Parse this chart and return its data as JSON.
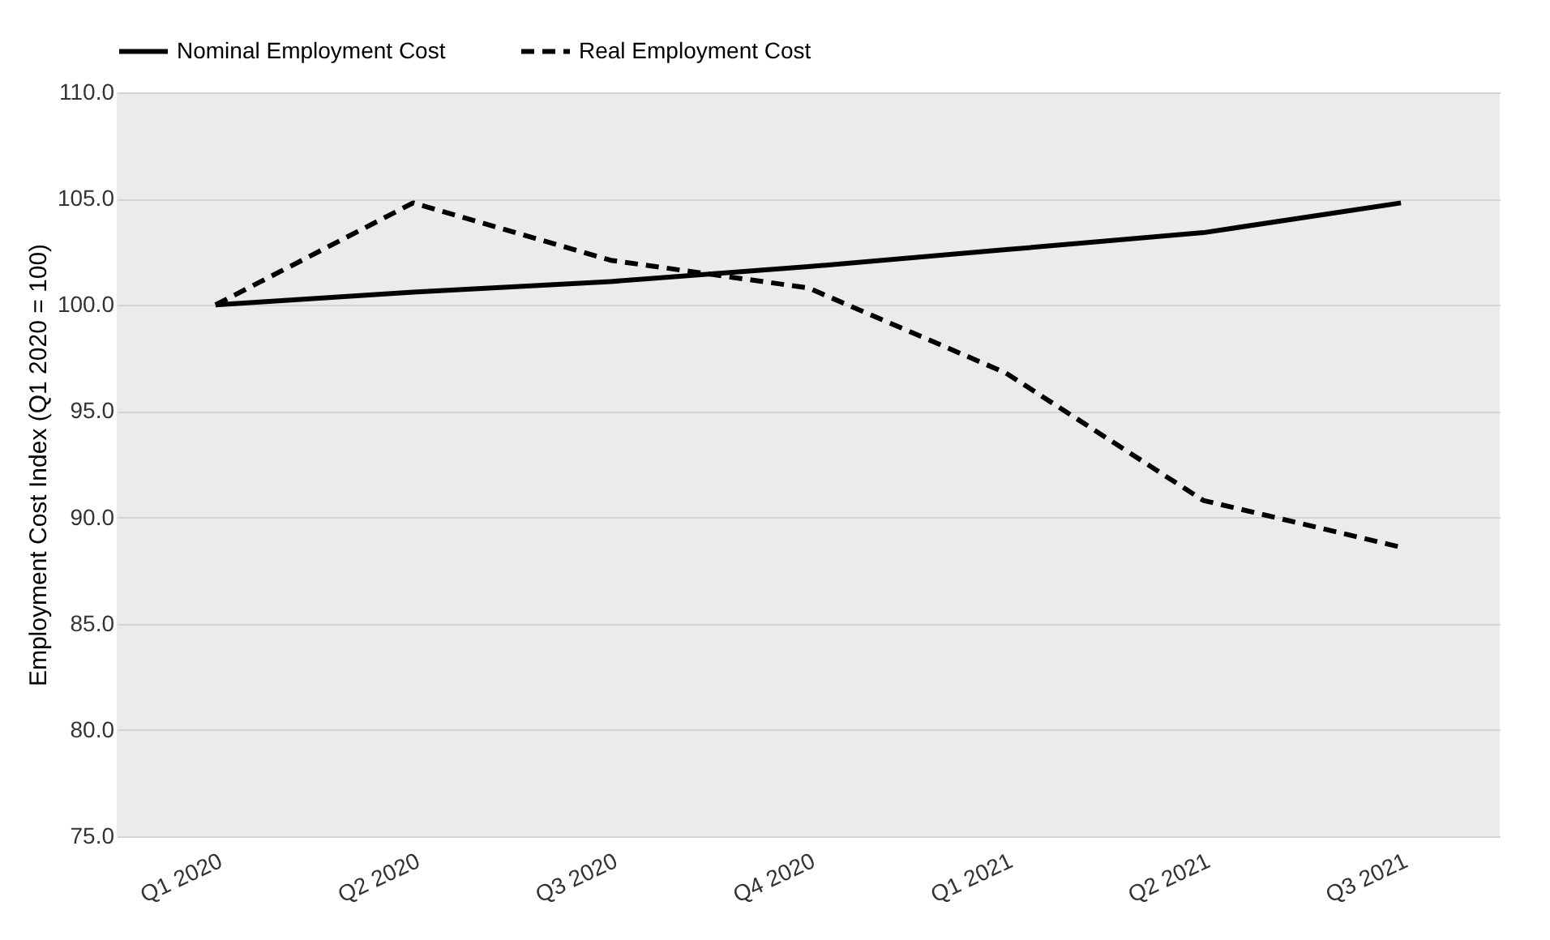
{
  "chart_data": {
    "type": "line",
    "ylabel": "Employment Cost Index (Q1 2020 = 100)",
    "categories": [
      "Q1 2020",
      "Q2 2020",
      "Q3 2020",
      "Q4 2020",
      "Q1 2021",
      "Q2 2021",
      "Q3 2021"
    ],
    "series": [
      {
        "name": "Nominal Employment Cost",
        "color": "#000000",
        "line_style": "solid",
        "values": [
          100.0,
          100.6,
          101.1,
          101.8,
          102.6,
          103.4,
          104.8
        ]
      },
      {
        "name": "Real Employment Cost",
        "color": "#000000",
        "line_style": "dashed",
        "values": [
          100.0,
          104.8,
          102.1,
          100.8,
          96.8,
          90.8,
          88.6
        ]
      }
    ],
    "ylim": [
      75,
      110
    ],
    "yticks": [
      {
        "value": 75,
        "label": "75.0"
      },
      {
        "value": 80,
        "label": "80.0"
      },
      {
        "value": 85,
        "label": "85.0"
      },
      {
        "value": 90,
        "label": "90.0"
      },
      {
        "value": 95,
        "label": "95.0"
      },
      {
        "value": 100,
        "label": "100.0"
      },
      {
        "value": 105,
        "label": "105.0"
      },
      {
        "value": 110,
        "label": "110.0"
      }
    ],
    "grid": "y",
    "legend": "top",
    "marker": "none"
  }
}
